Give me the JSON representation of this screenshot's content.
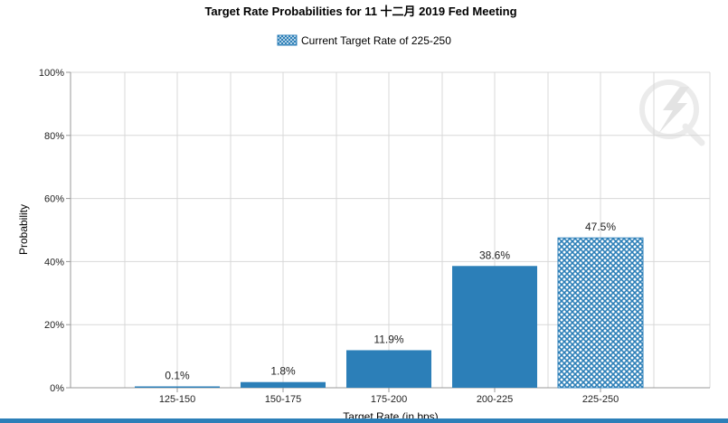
{
  "chart_data": {
    "type": "bar",
    "title": "Target Rate Probabilities for 11 十二月 2019 Fed Meeting",
    "legend": {
      "label": "Current Target Rate of 225-250",
      "placement": "top-center"
    },
    "xlabel": "Target Rate (in bps)",
    "ylabel": "Probability",
    "categories": [
      "125-150",
      "150-175",
      "175-200",
      "200-225",
      "225-250"
    ],
    "values": [
      0.1,
      1.8,
      11.9,
      38.6,
      47.5
    ],
    "value_labels": [
      "0.1%",
      "1.8%",
      "11.9%",
      "38.6%",
      "47.5%"
    ],
    "highlighted_category": "225-250",
    "ylim": [
      0,
      100
    ],
    "yticks": [
      0,
      20,
      40,
      60,
      80,
      100
    ],
    "ytick_labels": [
      "0%",
      "20%",
      "40%",
      "60%",
      "80%",
      "100%"
    ],
    "grid": true,
    "colors": {
      "bar": "#2c7fb8",
      "grid": "#d8d8d8",
      "axis": "#999999"
    }
  }
}
